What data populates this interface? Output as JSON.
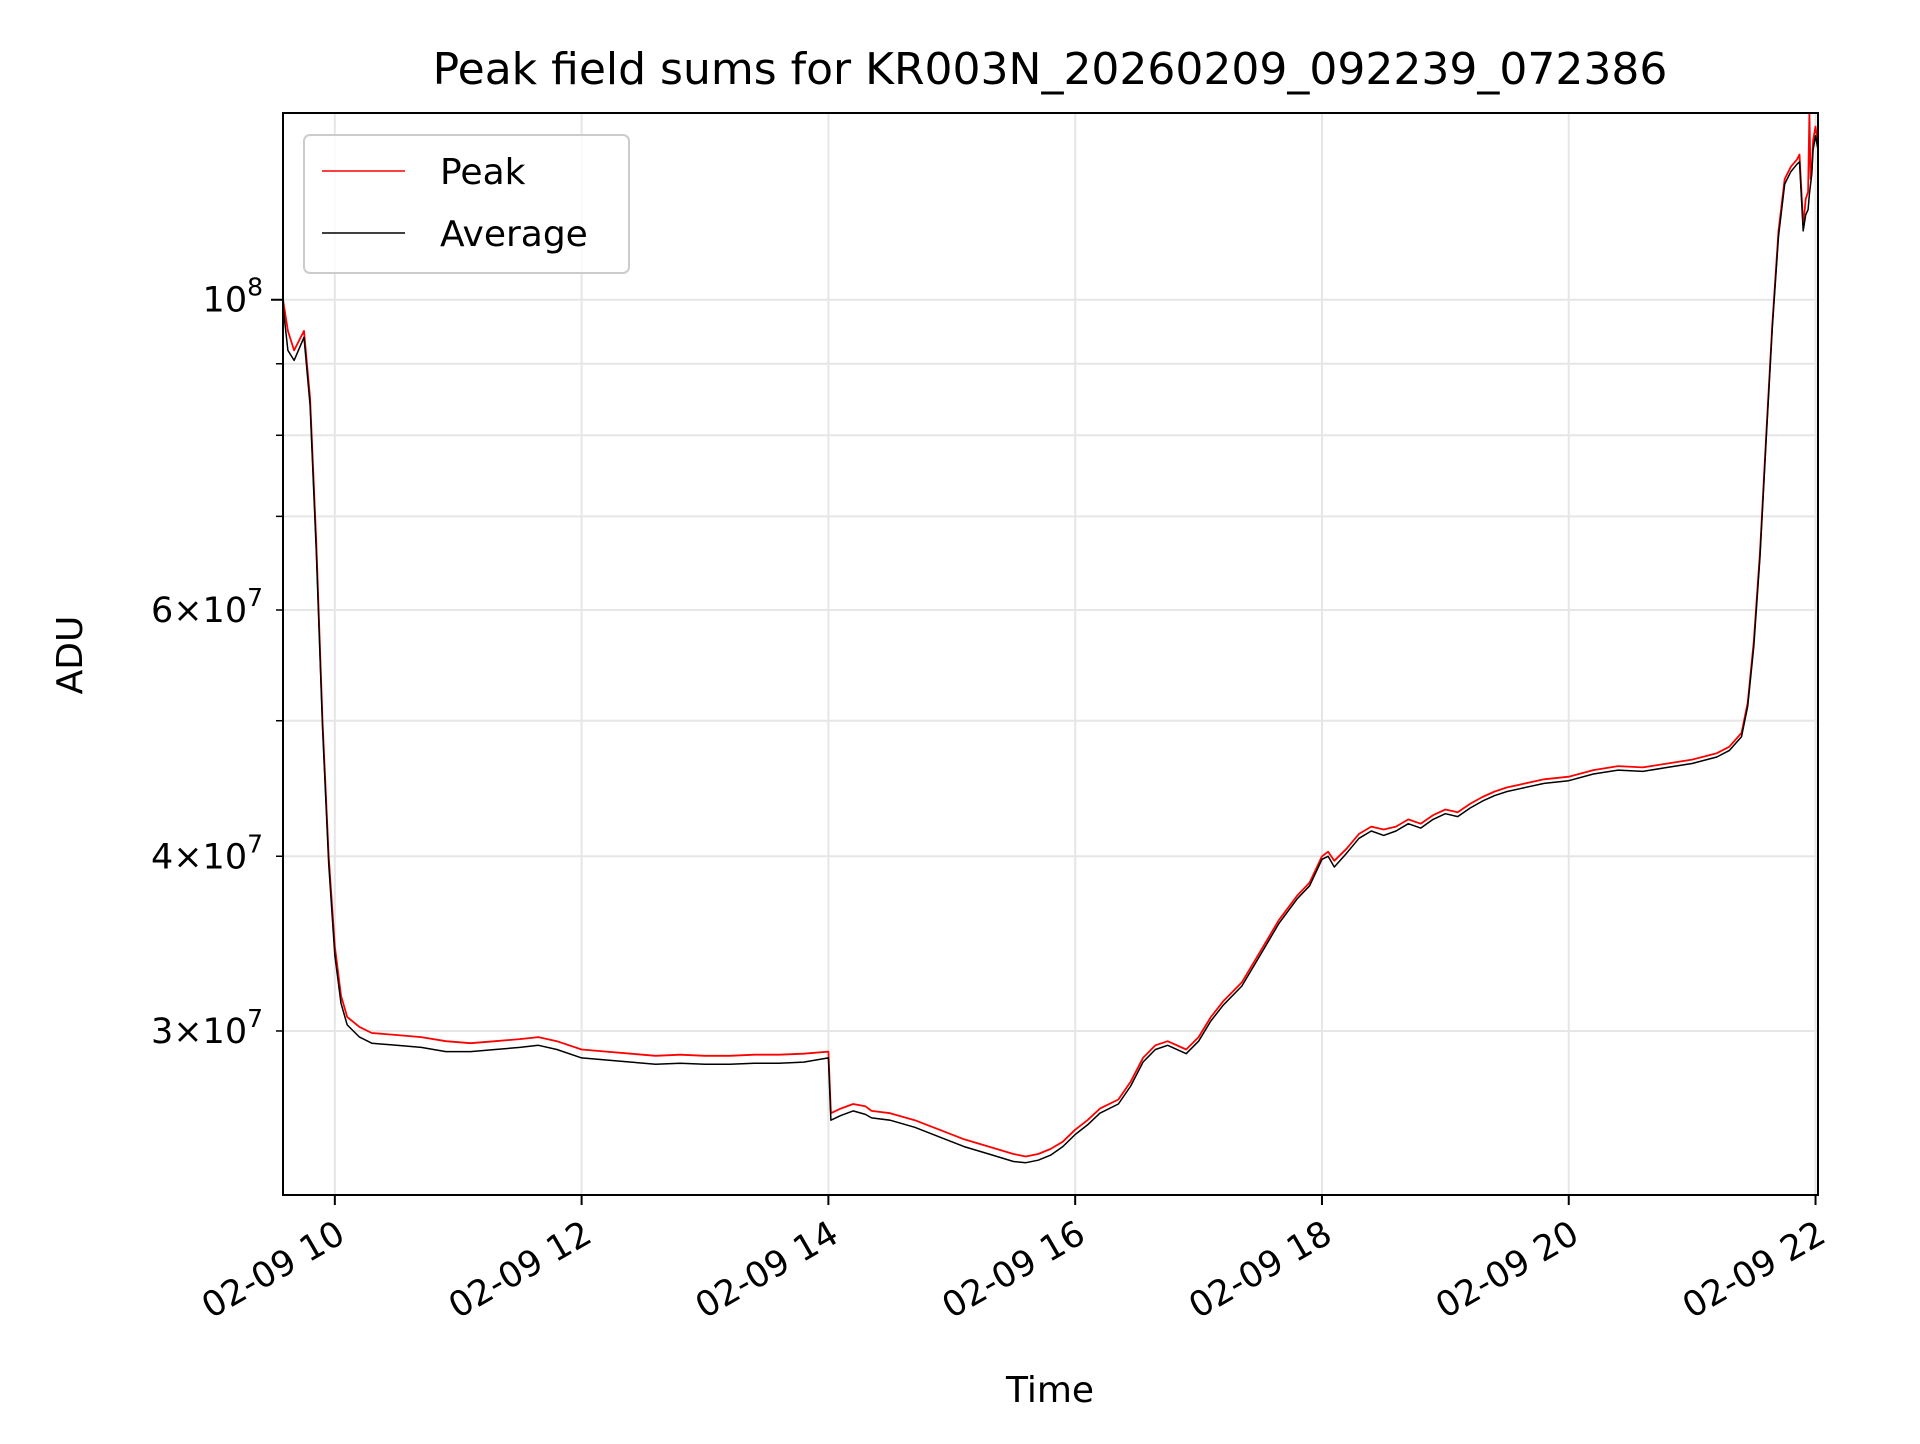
{
  "chart_data": {
    "type": "line",
    "title": "Peak field sums for KR003N_20260209_092239_072386",
    "xlabel": "Time",
    "ylabel": "ADU",
    "yscale": "log",
    "grid": true,
    "legend_position": "upper left",
    "x_unit": "hours (2026-02-09)",
    "xlim": [
      9.58,
      22.02
    ],
    "ylim": [
      22900000,
      136000000
    ],
    "x_ticks": [
      {
        "value": 10,
        "label": "02-09 10"
      },
      {
        "value": 12,
        "label": "02-09 12"
      },
      {
        "value": 14,
        "label": "02-09 14"
      },
      {
        "value": 16,
        "label": "02-09 16"
      },
      {
        "value": 18,
        "label": "02-09 18"
      },
      {
        "value": 20,
        "label": "02-09 20"
      },
      {
        "value": 22,
        "label": "02-09 22"
      }
    ],
    "y_ticks_major": [
      {
        "value": 100000000,
        "base": "10",
        "exp": "8"
      }
    ],
    "y_ticks_minor": [
      {
        "value": 30000000,
        "coef": "3",
        "exp": "7"
      },
      {
        "value": 40000000,
        "coef": "4",
        "exp": "7"
      },
      {
        "value": 60000000,
        "coef": "6",
        "exp": "7"
      }
    ],
    "y_minor_gridlines": [
      50000000,
      70000000,
      80000000,
      90000000
    ],
    "series": [
      {
        "name": "Peak",
        "color": "#ff0000",
        "x": [
          9.58,
          9.62,
          9.67,
          9.75,
          9.8,
          9.85,
          9.9,
          9.95,
          10.0,
          10.05,
          10.1,
          10.2,
          10.3,
          10.5,
          10.7,
          10.9,
          11.1,
          11.3,
          11.5,
          11.65,
          11.8,
          12.0,
          12.2,
          12.4,
          12.6,
          12.8,
          13.0,
          13.2,
          13.4,
          13.6,
          13.8,
          14.0,
          14.02,
          14.1,
          14.2,
          14.3,
          14.35,
          14.5,
          14.7,
          14.9,
          15.1,
          15.3,
          15.5,
          15.6,
          15.7,
          15.8,
          15.9,
          16.0,
          16.1,
          16.2,
          16.35,
          16.45,
          16.55,
          16.65,
          16.75,
          16.9,
          17.0,
          17.1,
          17.2,
          17.35,
          17.5,
          17.65,
          17.8,
          17.9,
          18.0,
          18.05,
          18.1,
          18.2,
          18.3,
          18.4,
          18.5,
          18.6,
          18.7,
          18.8,
          18.9,
          19.0,
          19.1,
          19.2,
          19.3,
          19.4,
          19.5,
          19.6,
          19.8,
          20.0,
          20.2,
          20.4,
          20.6,
          20.8,
          21.0,
          21.2,
          21.3,
          21.4,
          21.45,
          21.5,
          21.55,
          21.6,
          21.65,
          21.7,
          21.75,
          21.8,
          21.85,
          21.87,
          21.9,
          21.92,
          21.94,
          21.95,
          21.96,
          21.97,
          21.98,
          22.0,
          22.02
        ],
        "y": [
          100000000,
          95000000,
          92000000,
          95000000,
          85000000,
          67000000,
          50000000,
          40000000,
          34500000,
          31800000,
          30700000,
          30200000,
          29900000,
          29800000,
          29700000,
          29500000,
          29400000,
          29500000,
          29600000,
          29700000,
          29500000,
          29100000,
          29000000,
          28900000,
          28800000,
          28850000,
          28800000,
          28800000,
          28850000,
          28850000,
          28900000,
          29000000,
          26200000,
          26400000,
          26600000,
          26500000,
          26300000,
          26200000,
          25900000,
          25500000,
          25100000,
          24800000,
          24500000,
          24400000,
          24500000,
          24700000,
          25000000,
          25500000,
          25900000,
          26400000,
          26800000,
          27600000,
          28700000,
          29300000,
          29500000,
          29100000,
          29700000,
          30700000,
          31500000,
          32500000,
          34200000,
          36000000,
          37500000,
          38300000,
          40000000,
          40300000,
          39700000,
          40500000,
          41500000,
          42000000,
          41800000,
          42000000,
          42500000,
          42200000,
          42800000,
          43200000,
          43000000,
          43600000,
          44100000,
          44500000,
          44800000,
          45000000,
          45400000,
          45600000,
          46100000,
          46400000,
          46300000,
          46600000,
          46900000,
          47400000,
          47900000,
          49000000,
          51500000,
          57000000,
          66000000,
          80000000,
          96000000,
          112000000,
          122000000,
          124500000,
          126000000,
          127000000,
          113000000,
          118000000,
          119500000,
          136000000,
          122000000,
          124000000,
          130000000,
          133000000,
          129000000
        ]
      },
      {
        "name": "Average",
        "color": "#000000",
        "x": [
          9.58,
          9.62,
          9.67,
          9.75,
          9.8,
          9.85,
          9.9,
          9.95,
          10.0,
          10.05,
          10.1,
          10.2,
          10.3,
          10.5,
          10.7,
          10.9,
          11.1,
          11.3,
          11.5,
          11.65,
          11.8,
          12.0,
          12.2,
          12.4,
          12.6,
          12.8,
          13.0,
          13.2,
          13.4,
          13.6,
          13.8,
          14.0,
          14.02,
          14.1,
          14.2,
          14.3,
          14.35,
          14.5,
          14.7,
          14.9,
          15.1,
          15.3,
          15.5,
          15.6,
          15.7,
          15.8,
          15.9,
          16.0,
          16.1,
          16.2,
          16.35,
          16.45,
          16.55,
          16.65,
          16.75,
          16.9,
          17.0,
          17.1,
          17.2,
          17.35,
          17.5,
          17.65,
          17.8,
          17.9,
          18.0,
          18.05,
          18.1,
          18.2,
          18.3,
          18.4,
          18.5,
          18.6,
          18.7,
          18.8,
          18.9,
          19.0,
          19.1,
          19.2,
          19.3,
          19.4,
          19.5,
          19.6,
          19.8,
          20.0,
          20.2,
          20.4,
          20.6,
          20.8,
          21.0,
          21.2,
          21.3,
          21.4,
          21.45,
          21.5,
          21.55,
          21.6,
          21.65,
          21.7,
          21.75,
          21.8,
          21.85,
          21.87,
          21.9,
          21.92,
          21.94,
          21.95,
          21.96,
          21.97,
          21.98,
          22.0,
          22.02
        ],
        "y": [
          99000000,
          92000000,
          90500000,
          94000000,
          84000000,
          66000000,
          49500000,
          39500000,
          34000000,
          31400000,
          30300000,
          29700000,
          29400000,
          29300000,
          29200000,
          29000000,
          29000000,
          29100000,
          29200000,
          29300000,
          29100000,
          28700000,
          28600000,
          28500000,
          28400000,
          28450000,
          28400000,
          28400000,
          28450000,
          28450000,
          28500000,
          28700000,
          25900000,
          26100000,
          26300000,
          26150000,
          26000000,
          25900000,
          25600000,
          25200000,
          24800000,
          24500000,
          24200000,
          24150000,
          24250000,
          24450000,
          24800000,
          25300000,
          25700000,
          26200000,
          26600000,
          27400000,
          28500000,
          29100000,
          29300000,
          28900000,
          29500000,
          30500000,
          31300000,
          32300000,
          34000000,
          35800000,
          37300000,
          38100000,
          39800000,
          40000000,
          39300000,
          40200000,
          41200000,
          41700000,
          41400000,
          41700000,
          42200000,
          41900000,
          42500000,
          42900000,
          42700000,
          43300000,
          43800000,
          44200000,
          44500000,
          44700000,
          45100000,
          45300000,
          45800000,
          46100000,
          46000000,
          46300000,
          46600000,
          47100000,
          47600000,
          48700000,
          51200000,
          56500000,
          65500000,
          79500000,
          95500000,
          111000000,
          121000000,
          123500000,
          125000000,
          125500000,
          112000000,
          115000000,
          116000000,
          119000000,
          121000000,
          123000000,
          128000000,
          131000000,
          128000000
        ]
      }
    ]
  }
}
